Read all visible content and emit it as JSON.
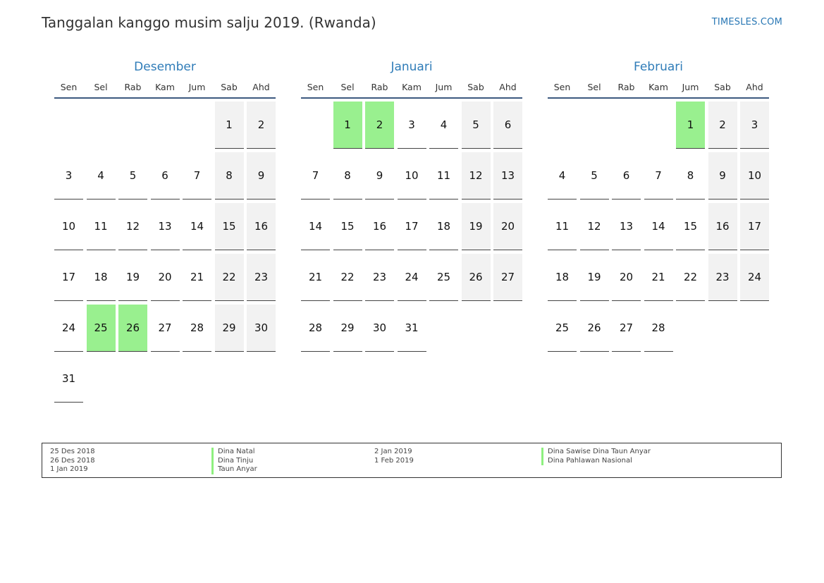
{
  "header": {
    "title": "Tanggalan kanggo musim salju 2019. (Rwanda)",
    "site": "TIMESLES.COM"
  },
  "weekdays": [
    "Sen",
    "Sel",
    "Rab",
    "Kam",
    "Jum",
    "Sab",
    "Ahd"
  ],
  "colors": {
    "holiday": "#99f08f",
    "weekend": "#f2f2f2",
    "month_name": "#2f7cb8",
    "site_link": "#2a78b5"
  },
  "months": [
    {
      "name": "Desember",
      "start_offset": 5,
      "days": 31,
      "holidays": [
        25,
        26
      ]
    },
    {
      "name": "Januari",
      "start_offset": 1,
      "days": 31,
      "holidays": [
        1,
        2
      ]
    },
    {
      "name": "Februari",
      "start_offset": 4,
      "days": 28,
      "holidays": [
        1
      ]
    }
  ],
  "legend": {
    "col1_dates": [
      "25 Des 2018",
      "26 Des 2018",
      "1 Jan 2019"
    ],
    "col1_names": [
      "Dina Natal",
      "Dina Tinju",
      "Taun Anyar"
    ],
    "col2_dates": [
      "2 Jan 2019",
      "1 Feb 2019"
    ],
    "col2_names": [
      "Dina Sawise Dina Taun Anyar",
      "Dina Pahlawan Nasional"
    ]
  }
}
